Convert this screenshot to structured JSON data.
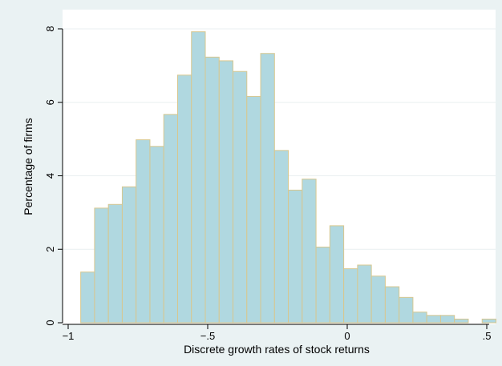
{
  "chart_data": {
    "type": "bar",
    "title": "",
    "xlabel": "Discrete growth rates of stock returns",
    "ylabel": "Percentage of firms",
    "xlim": [
      -1.0,
      0.5
    ],
    "ylim": [
      0,
      8
    ],
    "x_ticks": [
      {
        "value": -1.0,
        "label": "−1"
      },
      {
        "value": -0.5,
        "label": "−.5"
      },
      {
        "value": 0.0,
        "label": "0"
      },
      {
        "value": 0.5,
        "label": ".5"
      }
    ],
    "y_ticks": [
      {
        "value": 0,
        "label": "0"
      },
      {
        "value": 2,
        "label": "2"
      },
      {
        "value": 4,
        "label": "4"
      },
      {
        "value": 6,
        "label": "6"
      },
      {
        "value": 8,
        "label": "8"
      }
    ],
    "grid": "horizontal",
    "bin_start": -0.955,
    "bin_width": 0.0496,
    "values": [
      1.38,
      3.12,
      3.22,
      3.7,
      4.98,
      4.8,
      5.67,
      6.74,
      7.92,
      7.23,
      7.13,
      6.84,
      6.16,
      7.33,
      4.69,
      3.61,
      3.91,
      2.06,
      2.64,
      1.47,
      1.57,
      1.27,
      0.98,
      0.69,
      0.29,
      0.2,
      0.2,
      0.1,
      0.0,
      0.1
    ],
    "colors": {
      "bar_fill": "#b0d8e0",
      "bar_stroke": "#d7c78f",
      "plot_background": "#ffffff",
      "page_background": "#eaf2f3",
      "grid": "#e9eff0"
    }
  }
}
